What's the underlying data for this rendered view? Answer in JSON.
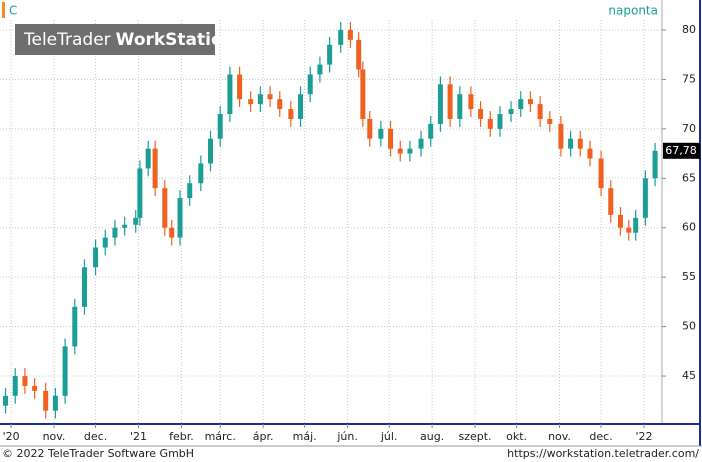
{
  "chart_data": {
    "type": "candlestick",
    "symbol": "C",
    "interval": "naponta",
    "logo": {
      "brand": "TeleTrader",
      "product": "WorkStation"
    },
    "footer": {
      "copyright": "© 2022 TeleTrader Software GmbH",
      "url": "https://workstation.teletrader.com/"
    },
    "up_color": "#1a9e96",
    "down_color": "#f0601e",
    "grid": true,
    "last_price_label": "67,78",
    "x": [
      -4,
      3,
      10,
      17,
      25,
      32,
      39,
      46,
      53,
      61,
      68,
      75,
      82,
      90,
      93,
      99,
      104,
      111,
      116,
      122,
      129,
      137,
      144,
      151,
      158,
      165,
      173,
      180,
      187,
      194,
      202,
      209,
      216,
      223,
      230,
      238,
      245,
      251,
      254,
      259,
      267,
      274,
      281,
      288,
      296,
      303,
      310,
      317,
      324,
      332,
      339,
      346,
      353,
      361,
      368,
      375,
      382,
      389,
      397,
      404,
      411,
      418,
      426,
      433,
      440,
      446,
      451,
      458,
      465
    ],
    "open": [
      42,
      43,
      45,
      44,
      43.5,
      41.5,
      43,
      48,
      52,
      56,
      58,
      59,
      60,
      60.3,
      61,
      66,
      68,
      64,
      60,
      59,
      63,
      64.5,
      66.5,
      69,
      71.5,
      75.5,
      73,
      72.5,
      73.5,
      73,
      72,
      71,
      73.5,
      75.5,
      76.5,
      78.5,
      80,
      79,
      76,
      71,
      69,
      70,
      68,
      67.5,
      68,
      69,
      70.5,
      74.5,
      71,
      73.5,
      72,
      71,
      70,
      71.5,
      72,
      73,
      72.5,
      71,
      70.5,
      68,
      69,
      68,
      67,
      64,
      61.3,
      60,
      59.5,
      61,
      65
    ],
    "high": [
      43.8,
      45.8,
      45.8,
      44.8,
      44.3,
      43.8,
      48.8,
      52.8,
      56.8,
      58.8,
      59.8,
      60.8,
      61.1,
      61.8,
      66.8,
      68.8,
      68.8,
      64.8,
      60.8,
      63.8,
      65.3,
      67.3,
      69.8,
      72.3,
      76.3,
      76.3,
      73.8,
      74.3,
      74.3,
      73.8,
      72.8,
      74.3,
      76.3,
      77.3,
      79.3,
      80.8,
      80.8,
      79.8,
      76.8,
      71.8,
      70.8,
      70.8,
      68.8,
      68.8,
      69.8,
      71.3,
      75.3,
      75.3,
      74.3,
      74.3,
      72.8,
      71.8,
      72.3,
      72.8,
      73.8,
      73.8,
      73.3,
      71.8,
      71.3,
      69.8,
      69.8,
      68.8,
      67.8,
      64.8,
      62.1,
      60.8,
      61.8,
      65.8,
      68.58
    ],
    "low": [
      41.2,
      42.2,
      43.2,
      42.7,
      40.7,
      40.7,
      42.2,
      47.2,
      51.2,
      55.2,
      57.2,
      58.2,
      59.2,
      59.5,
      60.2,
      65.2,
      63.2,
      59.2,
      58.2,
      58.2,
      62.2,
      63.7,
      65.7,
      68.2,
      70.7,
      72.2,
      71.7,
      71.7,
      72.2,
      71.2,
      70.2,
      70.2,
      72.7,
      74.7,
      75.7,
      77.7,
      78.2,
      75.2,
      70.2,
      68.2,
      68.2,
      67.2,
      66.7,
      66.7,
      67.2,
      68.2,
      69.7,
      70.2,
      70.2,
      71.2,
      70.2,
      69.2,
      69.2,
      70.7,
      71.2,
      71.7,
      70.2,
      69.7,
      67.2,
      67.2,
      67.2,
      66.2,
      63.2,
      60.5,
      59.2,
      58.7,
      58.7,
      60.2,
      64.2
    ],
    "close": [
      43,
      45,
      44,
      43.5,
      41.5,
      43,
      48,
      52,
      56,
      58,
      59,
      60,
      60.3,
      61,
      66,
      68,
      64,
      60,
      59,
      63,
      64.5,
      66.5,
      69,
      71.5,
      75.5,
      73,
      72.5,
      73.5,
      73,
      72,
      71,
      73.5,
      75.5,
      76.5,
      78.5,
      80,
      79,
      76,
      71,
      69,
      70,
      68,
      67.5,
      68,
      69,
      70.5,
      74.5,
      71,
      73.5,
      72,
      71,
      70,
      71.5,
      72,
      73,
      72.5,
      71,
      70.5,
      68,
      69,
      68,
      67,
      64,
      61.3,
      60,
      59.5,
      61,
      65,
      67.78
    ],
    "xlim": [
      -8,
      470
    ],
    "xticks": [
      {
        "value": 0,
        "label": "'20"
      },
      {
        "value": 31,
        "label": "nov."
      },
      {
        "value": 61,
        "label": "dec."
      },
      {
        "value": 92,
        "label": "'21"
      },
      {
        "value": 123,
        "label": "febr."
      },
      {
        "value": 151,
        "label": "márc."
      },
      {
        "value": 182,
        "label": "ápr."
      },
      {
        "value": 212,
        "label": "máj."
      },
      {
        "value": 243,
        "label": "jún."
      },
      {
        "value": 273,
        "label": "júl."
      },
      {
        "value": 304,
        "label": "aug."
      },
      {
        "value": 335,
        "label": "szept."
      },
      {
        "value": 365,
        "label": "okt."
      },
      {
        "value": 396,
        "label": "nov."
      },
      {
        "value": 426,
        "label": "dec."
      },
      {
        "value": 457,
        "label": "'22"
      }
    ],
    "ylim": [
      40.15,
      83.03
    ],
    "yticks": [
      45,
      50,
      55,
      60,
      65,
      70,
      75,
      80
    ]
  }
}
